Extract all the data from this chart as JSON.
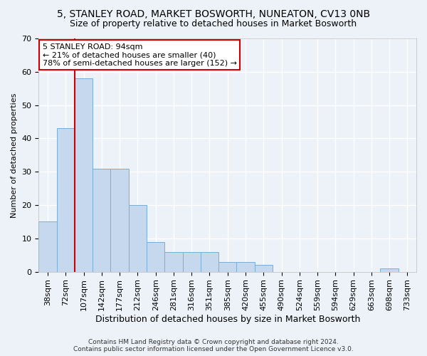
{
  "title1": "5, STANLEY ROAD, MARKET BOSWORTH, NUNEATON, CV13 0NB",
  "title2": "Size of property relative to detached houses in Market Bosworth",
  "xlabel": "Distribution of detached houses by size in Market Bosworth",
  "ylabel": "Number of detached properties",
  "bar_labels": [
    "38sqm",
    "72sqm",
    "107sqm",
    "142sqm",
    "177sqm",
    "212sqm",
    "246sqm",
    "281sqm",
    "316sqm",
    "351sqm",
    "385sqm",
    "420sqm",
    "455sqm",
    "490sqm",
    "524sqm",
    "559sqm",
    "594sqm",
    "629sqm",
    "663sqm",
    "698sqm",
    "733sqm"
  ],
  "bar_values": [
    15,
    43,
    58,
    31,
    31,
    20,
    9,
    6,
    6,
    6,
    3,
    3,
    2,
    0,
    0,
    0,
    0,
    0,
    0,
    1,
    0
  ],
  "bar_color": "#c5d8ed",
  "bar_edgecolor": "#7aaed4",
  "vline_x": 2.0,
  "vline_color": "#cc0000",
  "annotation_title": "5 STANLEY ROAD: 94sqm",
  "annotation_line1": "← 21% of detached houses are smaller (40)",
  "annotation_line2": "78% of semi-detached houses are larger (152) →",
  "annotation_box_facecolor": "#ffffff",
  "annotation_box_edgecolor": "#cc0000",
  "ylim": [
    0,
    70
  ],
  "yticks": [
    0,
    10,
    20,
    30,
    40,
    50,
    60,
    70
  ],
  "footer1": "Contains HM Land Registry data © Crown copyright and database right 2024.",
  "footer2": "Contains public sector information licensed under the Open Government Licence v3.0.",
  "background_color": "#edf2f8",
  "grid_color": "#ffffff",
  "title1_fontsize": 10,
  "title2_fontsize": 9,
  "xlabel_fontsize": 9,
  "ylabel_fontsize": 8,
  "tick_fontsize": 8,
  "annotation_fontsize": 8,
  "footer_fontsize": 6.5
}
